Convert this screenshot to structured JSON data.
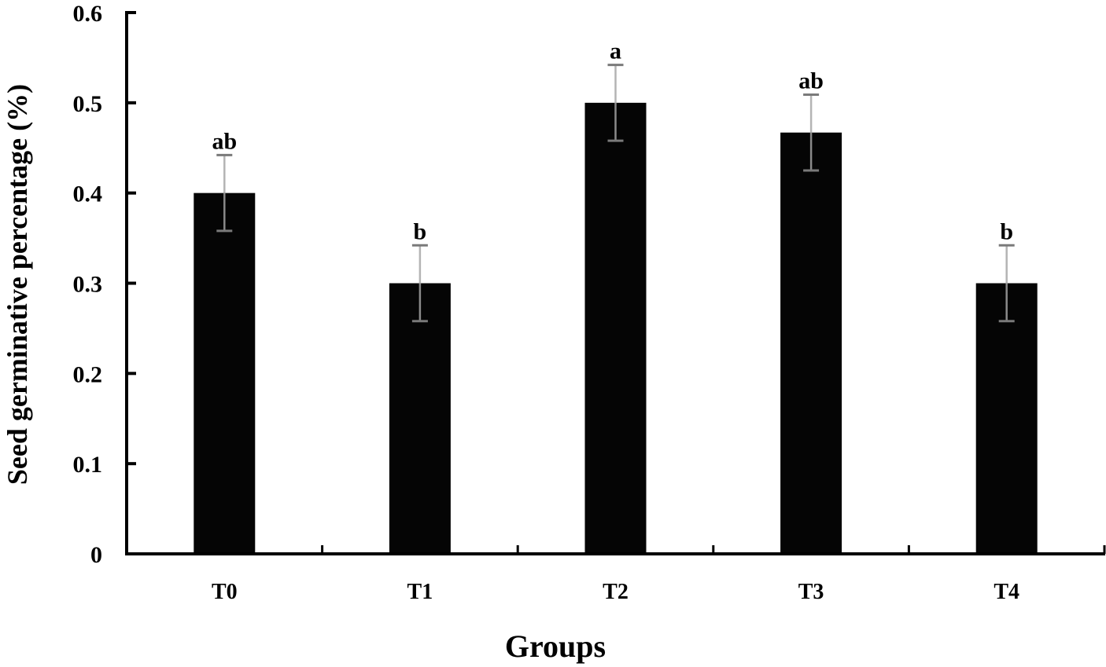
{
  "chart_data": {
    "type": "bar",
    "title": "",
    "xlabel": "Groups",
    "ylabel": "Seed germinative percentage (%)",
    "categories": [
      "T0",
      "T1",
      "T2",
      "T3",
      "T4"
    ],
    "values": [
      0.4,
      0.3,
      0.5,
      0.467,
      0.3
    ],
    "error": [
      0.042,
      0.042,
      0.042,
      0.042,
      0.042
    ],
    "significance_labels": [
      "ab",
      "b",
      "a",
      "ab",
      "b"
    ],
    "ylim": [
      0,
      0.6
    ],
    "yticks": [
      "0",
      "0.1",
      "0.2",
      "0.3",
      "0.4",
      "0.5",
      "0.6"
    ],
    "grid": false,
    "legend": null,
    "colors": {
      "bar": "#050505",
      "error_bar": "#8a8a8a",
      "axis": "#000000"
    }
  }
}
